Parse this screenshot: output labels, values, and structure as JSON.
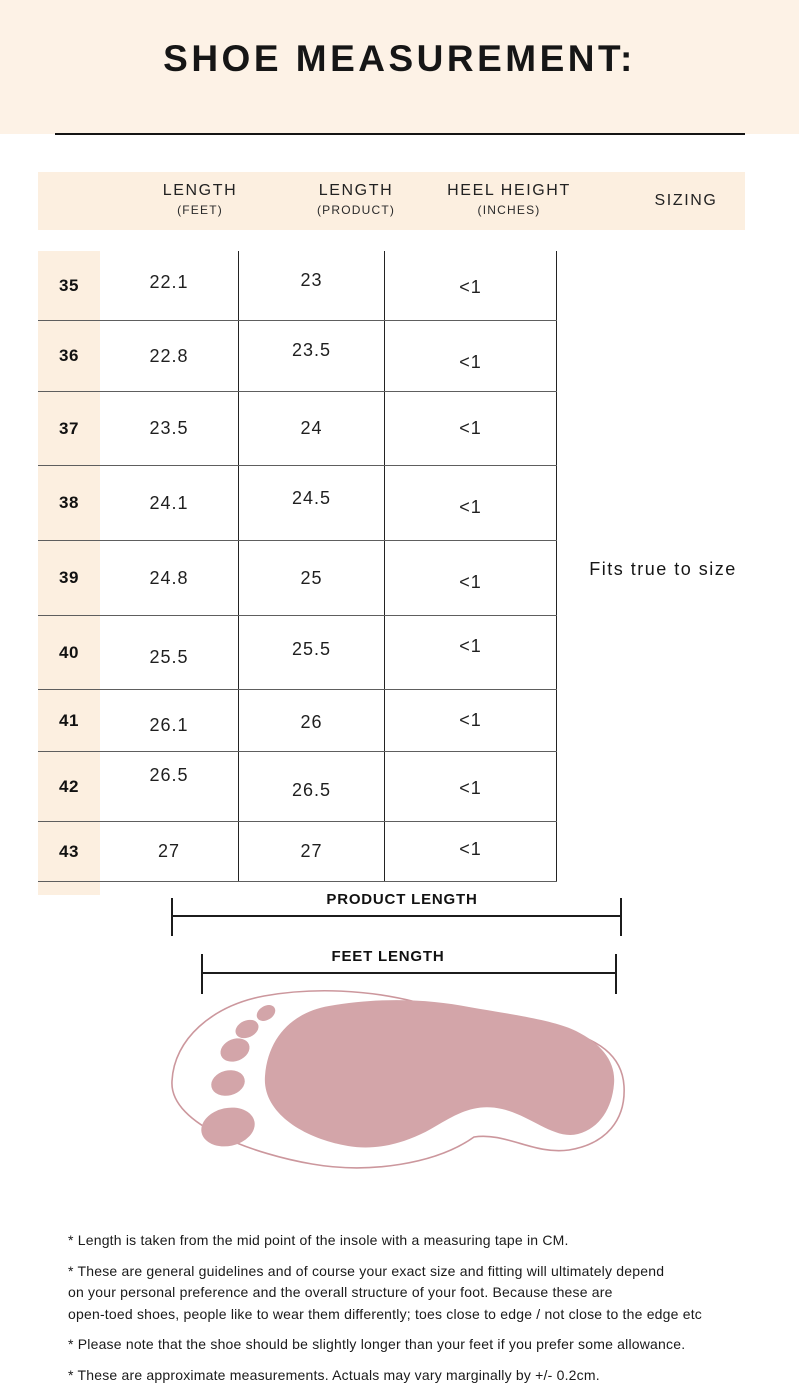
{
  "title": "SHOE MEASUREMENT:",
  "table": {
    "headers": [
      {
        "label": "LENGTH",
        "sub": "(FEET)"
      },
      {
        "label": "LENGTH",
        "sub": "(PRODUCT)"
      },
      {
        "label": "HEEL HEIGHT",
        "sub": "(INCHES)"
      },
      {
        "label": "SIZING",
        "sub": ""
      }
    ],
    "rows": [
      {
        "size": "35",
        "feet_length_cm": "22.1",
        "product_length_cm": "23",
        "heel_height_in": "<1"
      },
      {
        "size": "36",
        "feet_length_cm": "22.8",
        "product_length_cm": "23.5",
        "heel_height_in": "<1"
      },
      {
        "size": "37",
        "feet_length_cm": "23.5",
        "product_length_cm": "24",
        "heel_height_in": "<1"
      },
      {
        "size": "38",
        "feet_length_cm": "24.1",
        "product_length_cm": "24.5",
        "heel_height_in": "<1"
      },
      {
        "size": "39",
        "feet_length_cm": "24.8",
        "product_length_cm": "25",
        "heel_height_in": "<1"
      },
      {
        "size": "40",
        "feet_length_cm": "25.5",
        "product_length_cm": "25.5",
        "heel_height_in": "<1"
      },
      {
        "size": "41",
        "feet_length_cm": "26.1",
        "product_length_cm": "26",
        "heel_height_in": "<1"
      },
      {
        "size": "42",
        "feet_length_cm": "26.5",
        "product_length_cm": "26.5",
        "heel_height_in": "<1"
      },
      {
        "size": "43",
        "feet_length_cm": "27",
        "product_length_cm": "27",
        "heel_height_in": "<1"
      }
    ],
    "sizing_note": "Fits true to size"
  },
  "diagram": {
    "product_length_label": "PRODUCT LENGTH",
    "feet_length_label": "FEET LENGTH"
  },
  "footnotes": [
    "* Length is taken from the mid point of the insole with a measuring tape in CM.",
    "* These are general guidelines and of course your exact size and fitting will ultimately depend\non your personal preference and the overall structure of your foot. Because these are\nopen-toed shoes, people like to wear them differently; toes close to edge / not close to the edge etc",
    "* Please note that the shoe should be slightly longer than your feet if you prefer some allowance.",
    "* These are approximate measurements. Actuals may vary marginally by +/- 0.2cm."
  ],
  "colors": {
    "cream_banner": "#fdf2e6",
    "cream_cells": "#fcefe0",
    "footprint_pink": "#d3a5a9",
    "outline_pink": "#cc979d",
    "line_dark": "#1c1c1c"
  }
}
